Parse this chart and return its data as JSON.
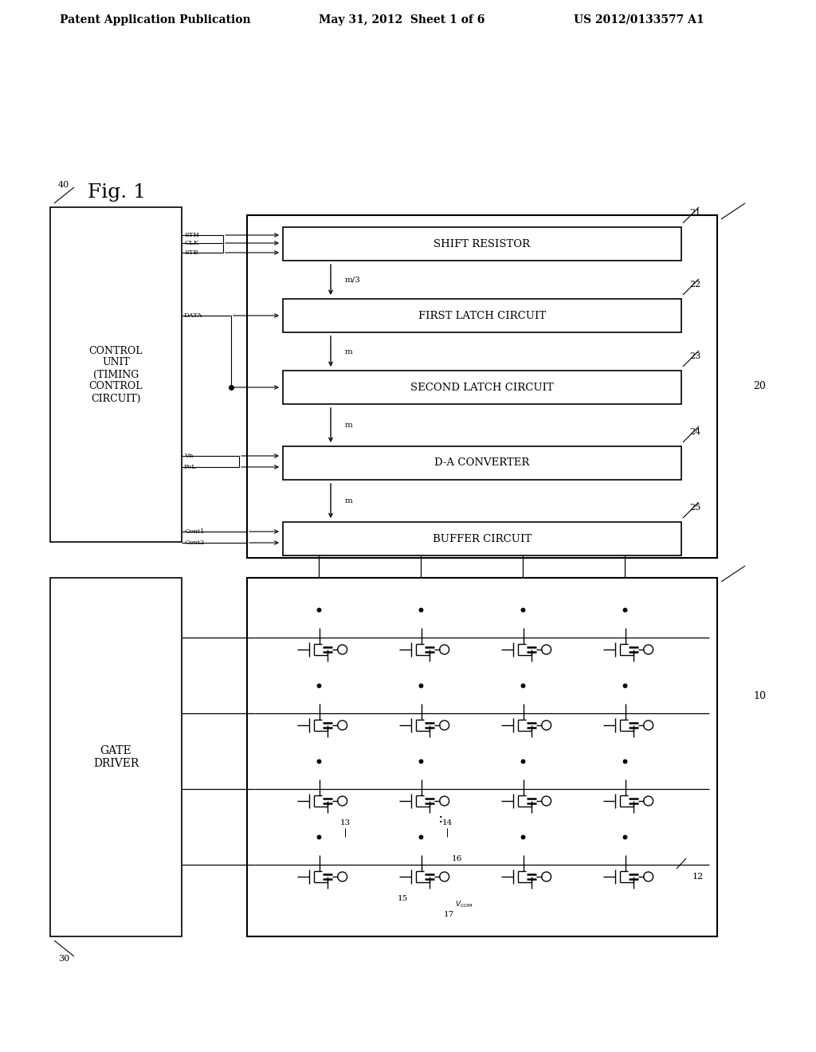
{
  "bg_color": "#ffffff",
  "header_left": "Patent Application Publication",
  "header_mid": "May 31, 2012  Sheet 1 of 6",
  "header_right": "US 2012/0133577 A1",
  "fig_label": "Fig. 1",
  "blocks": [
    {
      "label": "SHIFT RESISTOR",
      "num": "21"
    },
    {
      "label": "FIRST LATCH CIRCUIT",
      "num": "22"
    },
    {
      "label": "SECOND LATCH CIRCUIT",
      "num": "23"
    },
    {
      "label": "D-A CONVERTER",
      "num": "24"
    },
    {
      "label": "BUFFER CIRCUIT",
      "num": "25"
    }
  ],
  "control_unit_label": "CONTROL\nUNIT\n(TIMING\nCONTROL\nCIRCUIT)",
  "gate_driver_label": "GATE\nDRIVER",
  "num_cols": 4,
  "num_rows": 4
}
